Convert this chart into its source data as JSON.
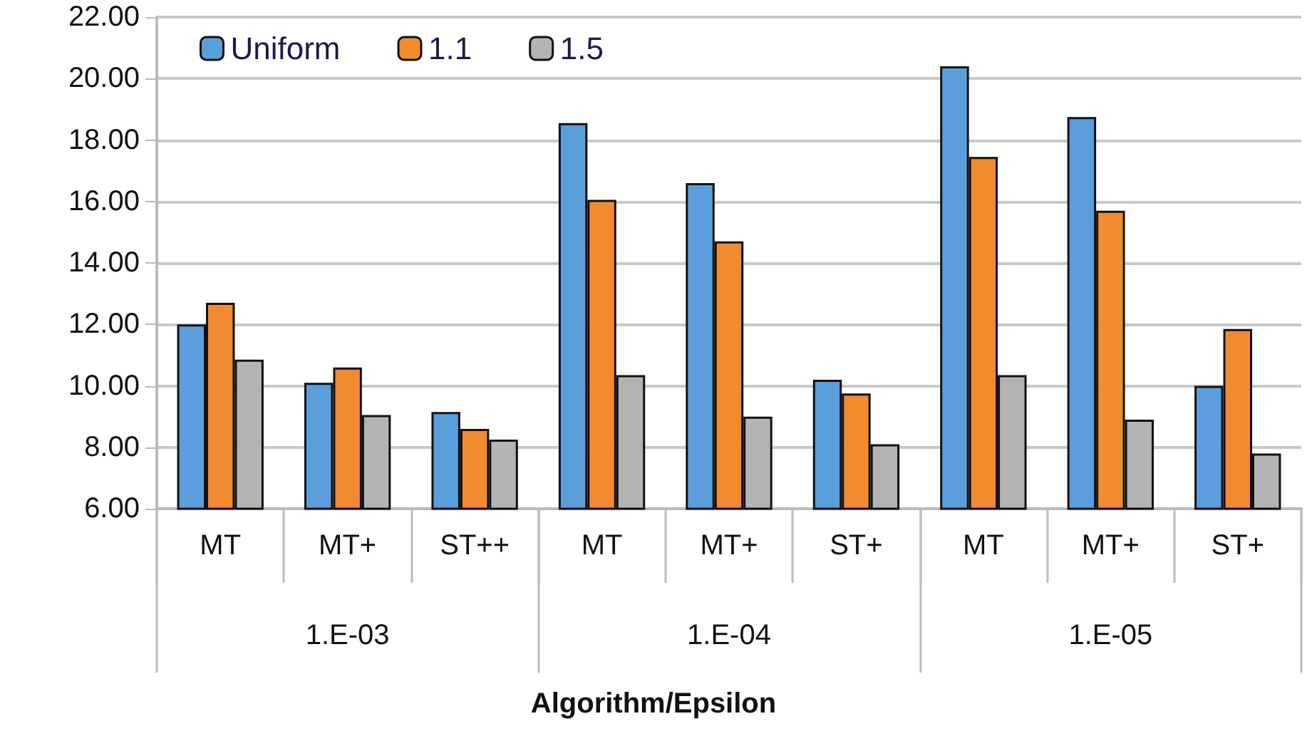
{
  "chart_data": {
    "type": "bar",
    "xlabel": "Algorithm/Epsilon",
    "categories": [
      "MT",
      "MT+",
      "ST++",
      "MT",
      "MT+",
      "ST+",
      "MT",
      "MT+",
      "ST+"
    ],
    "annotations": [
      "1.E-03",
      "1.E-04",
      "1.E-05"
    ],
    "series": [
      {
        "name": "Uniform",
        "color": "#5a9fdc",
        "values": [
          12.0,
          10.1,
          9.15,
          18.55,
          16.6,
          10.2,
          20.4,
          18.75,
          10.0
        ]
      },
      {
        "name": "1.1",
        "color": "#f28a30",
        "values": [
          12.7,
          10.6,
          8.6,
          16.05,
          14.7,
          9.75,
          17.45,
          15.7,
          11.85
        ]
      },
      {
        "name": "1.5",
        "color": "#b4b4b4",
        "values": [
          10.85,
          9.05,
          8.25,
          10.35,
          9.0,
          8.1,
          10.35,
          8.9,
          7.8
        ]
      }
    ],
    "ylim": [
      6,
      22
    ],
    "yticks": [
      {
        "value": 6,
        "label": "6.00"
      },
      {
        "value": 8,
        "label": "8.00"
      },
      {
        "value": 10,
        "label": "10.00"
      },
      {
        "value": 12,
        "label": "12.00"
      },
      {
        "value": 14,
        "label": "14.00"
      },
      {
        "value": 16,
        "label": "16.00"
      },
      {
        "value": 18,
        "label": "18.00"
      },
      {
        "value": 20,
        "label": "20.00"
      },
      {
        "value": 22,
        "label": "22.00"
      }
    ],
    "grid": "y",
    "legend": "top left"
  }
}
